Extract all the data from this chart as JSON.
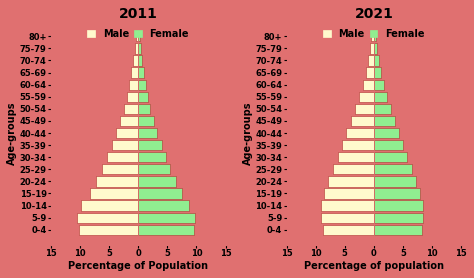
{
  "age_groups": [
    "0-4",
    "5-9",
    "10-14",
    "15-19",
    "20-24",
    "25-29",
    "30-34",
    "35-39",
    "40-44",
    "45-49",
    "50-54",
    "55-59",
    "60-64",
    "65-69",
    "70-74",
    "75-79",
    "80+"
  ],
  "year2011": {
    "male": [
      10.2,
      10.5,
      9.8,
      8.2,
      7.2,
      6.2,
      5.3,
      4.5,
      3.8,
      3.1,
      2.5,
      2.0,
      1.6,
      1.2,
      0.9,
      0.6,
      0.4
    ],
    "female": [
      9.5,
      9.8,
      8.8,
      7.5,
      6.5,
      5.5,
      4.8,
      4.0,
      3.3,
      2.7,
      2.1,
      1.7,
      1.3,
      1.0,
      0.7,
      0.5,
      0.3
    ]
  },
  "year2021": {
    "male": [
      8.8,
      9.0,
      9.0,
      8.5,
      7.8,
      7.0,
      6.2,
      5.5,
      4.7,
      4.0,
      3.2,
      2.5,
      1.9,
      1.4,
      1.0,
      0.7,
      0.5
    ],
    "female": [
      8.2,
      8.4,
      8.4,
      7.9,
      7.2,
      6.5,
      5.7,
      5.0,
      4.3,
      3.6,
      2.9,
      2.2,
      1.7,
      1.2,
      0.9,
      0.6,
      0.4
    ]
  },
  "male_color": "#FFFACD",
  "female_color": "#90EE90",
  "background_color": "#E07070",
  "bar_edge_color": "#B03030",
  "title_2011": "2011",
  "title_2021": "2021",
  "xlabel_2011": "Percentage of Population",
  "xlabel_2021": "Percentage of population",
  "ylabel": "Age-groups",
  "xlim": 15,
  "title_fontsize": 10,
  "label_fontsize": 7,
  "tick_fontsize": 6,
  "legend_fontsize": 7
}
